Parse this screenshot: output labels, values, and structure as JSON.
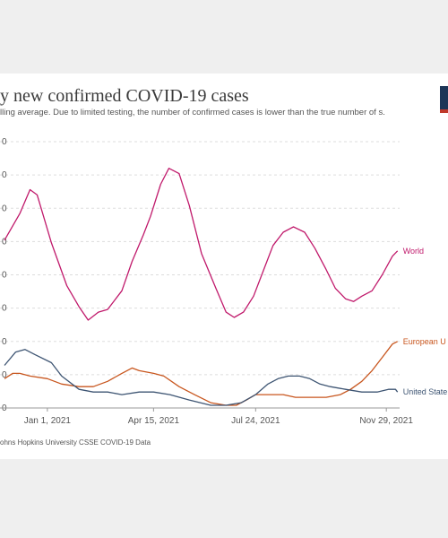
{
  "title": "y new confirmed COVID-19 cases",
  "subtitle": "lling average. Due to limited testing, the number of confirmed cases is lower than the true number of s.",
  "source": "ohns Hopkins University CSSE COVID-19 Data",
  "chart_data": {
    "type": "line",
    "title": "y new confirmed COVID-19 cases",
    "xlabel": "",
    "ylabel": "",
    "x_tick_labels": [
      "Jan 1, 2021",
      "Apr 15, 2021",
      "Jul 24, 2021",
      "Nov 29, 2021"
    ],
    "x_range": [
      "2020-11-20",
      "2021-12-12"
    ],
    "grid": true,
    "legend": "inline labels at line ends (right)",
    "series": [
      {
        "name": "World",
        "color": "#c0196b",
        "values": [
          [
            "2020-11-20",
            0.63
          ],
          [
            "2020-12-05",
            0.73
          ],
          [
            "2020-12-15",
            0.82
          ],
          [
            "2020-12-22",
            0.8
          ],
          [
            "2021-01-05",
            0.62
          ],
          [
            "2021-01-20",
            0.46
          ],
          [
            "2021-02-01",
            0.38
          ],
          [
            "2021-02-10",
            0.33
          ],
          [
            "2021-02-20",
            0.36
          ],
          [
            "2021-03-01",
            0.37
          ],
          [
            "2021-03-15",
            0.44
          ],
          [
            "2021-03-25",
            0.55
          ],
          [
            "2021-04-05",
            0.65
          ],
          [
            "2021-04-12",
            0.72
          ],
          [
            "2021-04-22",
            0.84
          ],
          [
            "2021-04-30",
            0.9
          ],
          [
            "2021-05-10",
            0.88
          ],
          [
            "2021-05-20",
            0.76
          ],
          [
            "2021-06-01",
            0.58
          ],
          [
            "2021-06-15",
            0.45
          ],
          [
            "2021-06-25",
            0.36
          ],
          [
            "2021-07-03",
            0.34
          ],
          [
            "2021-07-12",
            0.36
          ],
          [
            "2021-07-22",
            0.42
          ],
          [
            "2021-08-01",
            0.52
          ],
          [
            "2021-08-10",
            0.61
          ],
          [
            "2021-08-20",
            0.66
          ],
          [
            "2021-08-30",
            0.68
          ],
          [
            "2021-09-10",
            0.66
          ],
          [
            "2021-09-20",
            0.6
          ],
          [
            "2021-10-01",
            0.52
          ],
          [
            "2021-10-10",
            0.45
          ],
          [
            "2021-10-20",
            0.41
          ],
          [
            "2021-10-28",
            0.4
          ],
          [
            "2021-11-05",
            0.42
          ],
          [
            "2021-11-15",
            0.44
          ],
          [
            "2021-11-25",
            0.5
          ],
          [
            "2021-12-05",
            0.57
          ],
          [
            "2021-12-10",
            0.59
          ]
        ]
      },
      {
        "name": "European U",
        "color": "#c8561e",
        "values": [
          [
            "2020-11-20",
            0.11
          ],
          [
            "2020-11-28",
            0.13
          ],
          [
            "2020-12-05",
            0.13
          ],
          [
            "2020-12-15",
            0.12
          ],
          [
            "2021-01-01",
            0.11
          ],
          [
            "2021-01-15",
            0.09
          ],
          [
            "2021-02-01",
            0.08
          ],
          [
            "2021-02-15",
            0.08
          ],
          [
            "2021-03-01",
            0.1
          ],
          [
            "2021-03-15",
            0.13
          ],
          [
            "2021-03-25",
            0.15
          ],
          [
            "2021-04-01",
            0.14
          ],
          [
            "2021-04-15",
            0.13
          ],
          [
            "2021-04-25",
            0.12
          ],
          [
            "2021-05-10",
            0.08
          ],
          [
            "2021-05-25",
            0.05
          ],
          [
            "2021-06-10",
            0.02
          ],
          [
            "2021-06-25",
            0.01
          ],
          [
            "2021-07-05",
            0.01
          ],
          [
            "2021-07-15",
            0.03
          ],
          [
            "2021-07-24",
            0.05
          ],
          [
            "2021-08-05",
            0.05
          ],
          [
            "2021-08-20",
            0.05
          ],
          [
            "2021-09-01",
            0.04
          ],
          [
            "2021-09-15",
            0.04
          ],
          [
            "2021-10-01",
            0.04
          ],
          [
            "2021-10-15",
            0.05
          ],
          [
            "2021-10-25",
            0.07
          ],
          [
            "2021-11-05",
            0.1
          ],
          [
            "2021-11-15",
            0.14
          ],
          [
            "2021-11-25",
            0.19
          ],
          [
            "2021-12-05",
            0.24
          ],
          [
            "2021-12-10",
            0.25
          ]
        ]
      },
      {
        "name": "United State",
        "color": "#3e5573",
        "values": [
          [
            "2020-11-20",
            0.16
          ],
          [
            "2020-12-01",
            0.21
          ],
          [
            "2020-12-10",
            0.22
          ],
          [
            "2020-12-20",
            0.2
          ],
          [
            "2021-01-05",
            0.17
          ],
          [
            "2021-01-15",
            0.12
          ],
          [
            "2021-02-01",
            0.07
          ],
          [
            "2021-02-15",
            0.06
          ],
          [
            "2021-03-01",
            0.06
          ],
          [
            "2021-03-15",
            0.05
          ],
          [
            "2021-04-01",
            0.06
          ],
          [
            "2021-04-15",
            0.06
          ],
          [
            "2021-05-01",
            0.05
          ],
          [
            "2021-05-20",
            0.03
          ],
          [
            "2021-06-10",
            0.01
          ],
          [
            "2021-06-25",
            0.01
          ],
          [
            "2021-07-10",
            0.02
          ],
          [
            "2021-07-24",
            0.05
          ],
          [
            "2021-08-05",
            0.09
          ],
          [
            "2021-08-15",
            0.11
          ],
          [
            "2021-08-25",
            0.12
          ],
          [
            "2021-09-05",
            0.12
          ],
          [
            "2021-09-15",
            0.11
          ],
          [
            "2021-09-25",
            0.09
          ],
          [
            "2021-10-05",
            0.08
          ],
          [
            "2021-10-20",
            0.07
          ],
          [
            "2021-11-05",
            0.06
          ],
          [
            "2021-11-20",
            0.06
          ],
          [
            "2021-12-01",
            0.07
          ],
          [
            "2021-12-08",
            0.07
          ],
          [
            "2021-12-10",
            0.06
          ]
        ]
      }
    ]
  }
}
